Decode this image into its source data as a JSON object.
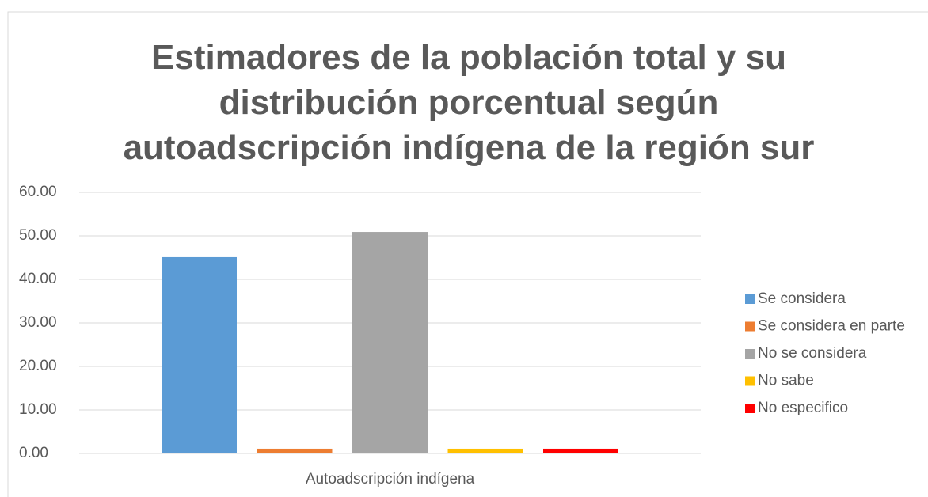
{
  "chart_data": {
    "type": "bar",
    "title": "Estimadores de la población total y su distribución porcentual según autoadscripción indígena de la región sur",
    "categories": [
      "Autoadscripción indígena"
    ],
    "series": [
      {
        "name": "Se considera",
        "color": "#5b9bd5",
        "values": [
          45.1
        ]
      },
      {
        "name": "Se considera en parte",
        "color": "#ed7d31",
        "values": [
          1.1
        ]
      },
      {
        "name": "No se considera",
        "color": "#a5a5a5",
        "values": [
          50.9
        ]
      },
      {
        "name": "No sabe",
        "color": "#ffc000",
        "values": [
          1.1
        ]
      },
      {
        "name": "No especifico",
        "color": "#ff0000",
        "values": [
          1.1
        ]
      }
    ],
    "ylim": [
      0,
      60
    ],
    "yticks": [
      {
        "value": 0,
        "label": "0.00"
      },
      {
        "value": 10,
        "label": "10.00"
      },
      {
        "value": 20,
        "label": "20.00"
      },
      {
        "value": 30,
        "label": "30.00"
      },
      {
        "value": 40,
        "label": "40.00"
      },
      {
        "value": 50,
        "label": "50.00"
      },
      {
        "value": 60,
        "label": "60.00"
      }
    ],
    "grid": true,
    "legend": "right"
  }
}
